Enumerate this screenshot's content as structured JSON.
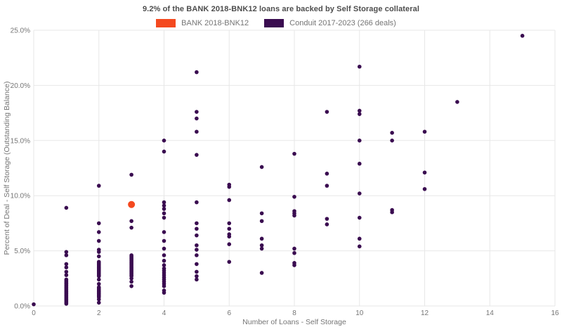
{
  "title": "9.2% of the BANK 2018-BNK12 loans are backed by Self Storage collateral",
  "colors": {
    "bank_accent": "#f4491f",
    "conduit_purple": "#3a0c50",
    "grid_line": "#e7e7e7",
    "tick_text": "#757575",
    "title_text": "#4d4d4d",
    "background": "#ffffff"
  },
  "chart_data": {
    "type": "scatter",
    "title": "9.2% of the BANK 2018-BNK12 loans are backed by Self Storage collateral",
    "xlabel": "Number of Loans - Self Storage",
    "ylabel": "Percent of Deal - Self Storage (Outstanding Balance)",
    "xlim": [
      0,
      16
    ],
    "ylim": [
      0,
      25
    ],
    "x_ticks": [
      0,
      2,
      4,
      6,
      8,
      10,
      12,
      14,
      16
    ],
    "x_tick_labels": [
      "0",
      "2",
      "4",
      "6",
      "8",
      "10",
      "12",
      "14",
      "16"
    ],
    "y_ticks": [
      0,
      5,
      10,
      15,
      20,
      25
    ],
    "y_tick_labels": [
      "0.0%",
      "5.0%",
      "10.0%",
      "15.0%",
      "20.0%",
      "25.0%"
    ],
    "grid": true,
    "legend_position": "top-center",
    "series": [
      {
        "name": "BANK 2018-BNK12",
        "color": "#f4491f",
        "marker_radius": 5,
        "points": [
          [
            3,
            9.2
          ]
        ]
      },
      {
        "name": "Conduit 2017-2023 (266 deals)",
        "color": "#3a0c50",
        "marker_radius": 2.8,
        "points": [
          [
            0,
            0.15
          ],
          [
            1,
            8.9
          ],
          [
            1,
            4.9
          ],
          [
            1,
            4.6
          ],
          [
            1,
            3.8
          ],
          [
            1,
            3.5
          ],
          [
            1,
            3.1
          ],
          [
            1,
            2.8
          ],
          [
            1,
            2.4
          ],
          [
            1,
            2.3
          ],
          [
            1,
            2.2
          ],
          [
            1,
            2.1
          ],
          [
            1,
            2.0
          ],
          [
            1,
            1.9
          ],
          [
            1,
            1.8
          ],
          [
            1,
            1.7
          ],
          [
            1,
            1.6
          ],
          [
            1,
            1.5
          ],
          [
            1,
            1.4
          ],
          [
            1,
            1.3
          ],
          [
            1,
            1.2
          ],
          [
            1,
            1.1
          ],
          [
            1,
            1.0
          ],
          [
            1,
            0.9
          ],
          [
            1,
            0.8
          ],
          [
            1,
            0.7
          ],
          [
            1,
            0.6
          ],
          [
            1,
            0.5
          ],
          [
            1,
            0.4
          ],
          [
            1,
            0.3
          ],
          [
            1,
            0.2
          ],
          [
            2,
            10.9
          ],
          [
            2,
            7.5
          ],
          [
            2,
            6.7
          ],
          [
            2,
            5.9
          ],
          [
            2,
            5.1
          ],
          [
            2,
            4.9
          ],
          [
            2,
            4.5
          ],
          [
            2,
            4.0
          ],
          [
            2,
            3.9
          ],
          [
            2,
            3.8
          ],
          [
            2,
            3.7
          ],
          [
            2,
            3.6
          ],
          [
            2,
            3.5
          ],
          [
            2,
            3.4
          ],
          [
            2,
            3.3
          ],
          [
            2,
            3.2
          ],
          [
            2,
            3.1
          ],
          [
            2,
            3.0
          ],
          [
            2,
            2.9
          ],
          [
            2,
            2.8
          ],
          [
            2,
            2.7
          ],
          [
            2,
            2.4
          ],
          [
            2,
            2.0
          ],
          [
            2,
            1.7
          ],
          [
            2,
            1.6
          ],
          [
            2,
            1.5
          ],
          [
            2,
            1.4
          ],
          [
            2,
            1.3
          ],
          [
            2,
            1.2
          ],
          [
            2,
            1.1
          ],
          [
            2,
            1.0
          ],
          [
            2,
            0.9
          ],
          [
            2,
            0.8
          ],
          [
            2,
            0.6
          ],
          [
            2,
            0.3
          ],
          [
            3,
            11.9
          ],
          [
            3,
            7.7
          ],
          [
            3,
            7.1
          ],
          [
            3,
            4.6
          ],
          [
            3,
            4.5
          ],
          [
            3,
            4.4
          ],
          [
            3,
            4.3
          ],
          [
            3,
            4.2
          ],
          [
            3,
            4.1
          ],
          [
            3,
            4.0
          ],
          [
            3,
            3.9
          ],
          [
            3,
            3.8
          ],
          [
            3,
            3.7
          ],
          [
            3,
            3.6
          ],
          [
            3,
            3.5
          ],
          [
            3,
            3.4
          ],
          [
            3,
            3.3
          ],
          [
            3,
            3.2
          ],
          [
            3,
            3.1
          ],
          [
            3,
            3.0
          ],
          [
            3,
            2.9
          ],
          [
            3,
            2.8
          ],
          [
            3,
            2.7
          ],
          [
            3,
            2.5
          ],
          [
            3,
            2.2
          ],
          [
            3,
            1.8
          ],
          [
            4,
            15.0
          ],
          [
            4,
            14.0
          ],
          [
            4,
            9.4
          ],
          [
            4,
            9.1
          ],
          [
            4,
            8.8
          ],
          [
            4,
            8.4
          ],
          [
            4,
            8.0
          ],
          [
            4,
            6.7
          ],
          [
            4,
            5.9
          ],
          [
            4,
            5.2
          ],
          [
            4,
            4.6
          ],
          [
            4,
            4.1
          ],
          [
            4,
            3.7
          ],
          [
            4,
            3.4
          ],
          [
            4,
            3.2
          ],
          [
            4,
            3.0
          ],
          [
            4,
            2.8
          ],
          [
            4,
            2.6
          ],
          [
            4,
            2.4
          ],
          [
            4,
            2.2
          ],
          [
            4,
            2.0
          ],
          [
            4,
            1.8
          ],
          [
            4,
            1.4
          ],
          [
            4,
            1.2
          ],
          [
            5,
            21.2
          ],
          [
            5,
            17.6
          ],
          [
            5,
            17.0
          ],
          [
            5,
            15.8
          ],
          [
            5,
            13.7
          ],
          [
            5,
            9.4
          ],
          [
            5,
            7.5
          ],
          [
            5,
            7.0
          ],
          [
            5,
            6.4
          ],
          [
            5,
            5.5
          ],
          [
            5,
            5.1
          ],
          [
            5,
            4.6
          ],
          [
            5,
            3.8
          ],
          [
            5,
            3.1
          ],
          [
            5,
            2.7
          ],
          [
            5,
            2.4
          ],
          [
            6,
            11.0
          ],
          [
            6,
            10.8
          ],
          [
            6,
            9.6
          ],
          [
            6,
            7.5
          ],
          [
            6,
            7.0
          ],
          [
            6,
            6.5
          ],
          [
            6,
            6.3
          ],
          [
            6,
            5.6
          ],
          [
            6,
            4.0
          ],
          [
            7,
            12.6
          ],
          [
            7,
            8.4
          ],
          [
            7,
            7.7
          ],
          [
            7,
            6.1
          ],
          [
            7,
            5.5
          ],
          [
            7,
            5.2
          ],
          [
            7,
            3.0
          ],
          [
            8,
            13.8
          ],
          [
            8,
            9.9
          ],
          [
            8,
            8.6
          ],
          [
            8,
            8.4
          ],
          [
            8,
            8.2
          ],
          [
            8,
            5.2
          ],
          [
            8,
            4.8
          ],
          [
            8,
            3.9
          ],
          [
            8,
            3.7
          ],
          [
            9,
            17.6
          ],
          [
            9,
            12.0
          ],
          [
            9,
            10.9
          ],
          [
            9,
            7.9
          ],
          [
            9,
            7.4
          ],
          [
            10,
            21.7
          ],
          [
            10,
            17.7
          ],
          [
            10,
            17.4
          ],
          [
            10,
            15.0
          ],
          [
            10,
            12.9
          ],
          [
            10,
            10.2
          ],
          [
            10,
            8.0
          ],
          [
            10,
            6.1
          ],
          [
            10,
            5.4
          ],
          [
            11,
            15.7
          ],
          [
            11,
            15.0
          ],
          [
            11,
            8.7
          ],
          [
            11,
            8.5
          ],
          [
            12,
            15.8
          ],
          [
            12,
            12.1
          ],
          [
            12,
            10.6
          ],
          [
            13,
            18.5
          ],
          [
            15,
            24.5
          ]
        ]
      }
    ]
  }
}
